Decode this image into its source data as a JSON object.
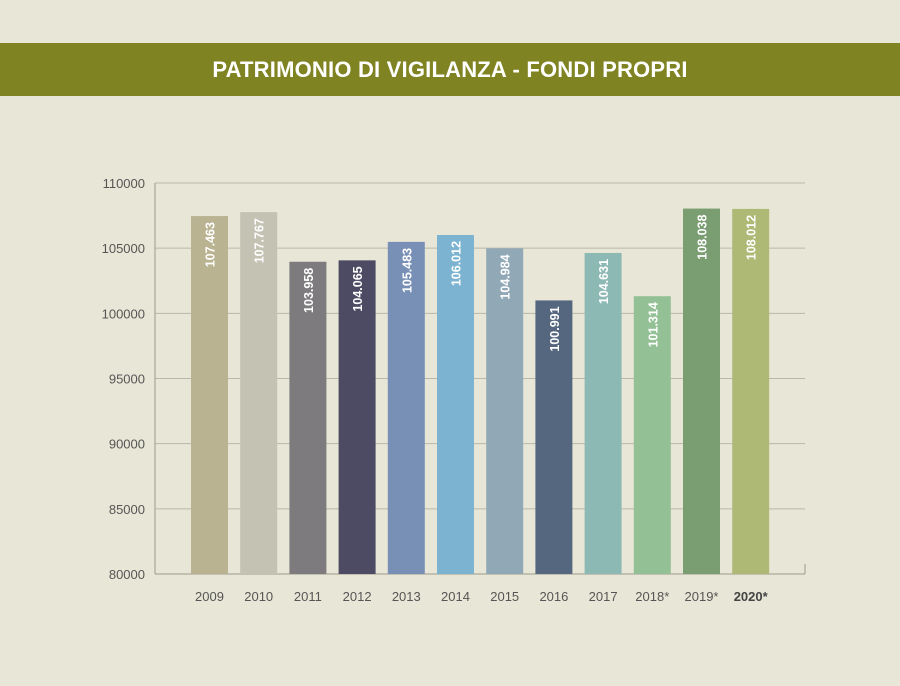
{
  "title": "PATRIMONIO DI VIGILANZA - FONDI PROPRI",
  "chart_data": {
    "type": "bar",
    "categories": [
      "2009",
      "2010",
      "2011",
      "2012",
      "2013",
      "2014",
      "2015",
      "2016",
      "2017",
      "2018*",
      "2019*",
      "2020*"
    ],
    "values": [
      107463,
      107767,
      103958,
      104065,
      105483,
      106012,
      104984,
      100991,
      104631,
      101314,
      108038,
      108012
    ],
    "value_labels": [
      "107.463",
      "107.767",
      "103.958",
      "104.065",
      "105.483",
      "106.012",
      "104.984",
      "100.991",
      "104.631",
      "101.314",
      "108.038",
      "108.012"
    ],
    "bar_colors": [
      "#b9b392",
      "#c4c2b3",
      "#7d7b7d",
      "#4d4a63",
      "#7890b6",
      "#7bb3d1",
      "#91a8b7",
      "#55677f",
      "#8db9b5",
      "#93c095",
      "#7a9d71",
      "#aeb976"
    ],
    "highlighted_category": "2020*",
    "ylim": [
      80000,
      110000
    ],
    "yticks": [
      80000,
      85000,
      90000,
      95000,
      100000,
      105000,
      110000
    ],
    "grid": true,
    "xlabel": "",
    "ylabel": ""
  }
}
